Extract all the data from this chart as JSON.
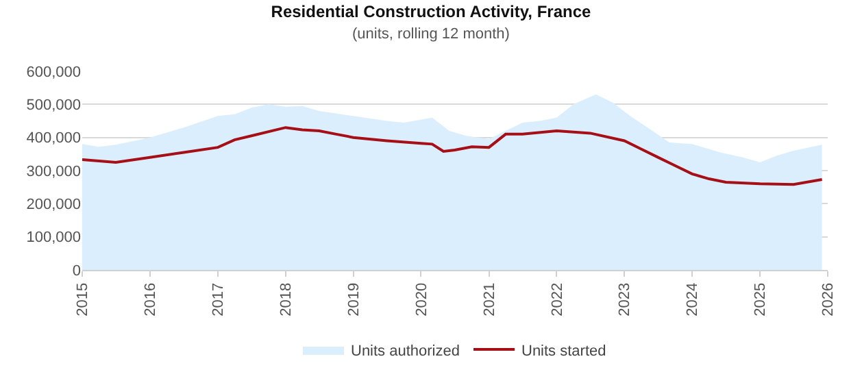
{
  "chart_data": {
    "type": "area",
    "title": "Residential Construction Activity, France",
    "subtitle": "(units, rolling 12 month)",
    "xlim": [
      "2015-01-01",
      "2026-01-01"
    ],
    "xticks": [
      {
        "value": "2015-01-01",
        "label": "2015"
      },
      {
        "value": "2016-01-01",
        "label": "2016"
      },
      {
        "value": "2017-01-01",
        "label": "2017"
      },
      {
        "value": "2018-01-01",
        "label": "2018"
      },
      {
        "value": "2019-01-01",
        "label": "2019"
      },
      {
        "value": "2020-01-01",
        "label": "2020"
      },
      {
        "value": "2021-01-01",
        "label": "2021"
      },
      {
        "value": "2022-01-01",
        "label": "2022"
      },
      {
        "value": "2023-01-01",
        "label": "2023"
      },
      {
        "value": "2024-01-01",
        "label": "2024"
      },
      {
        "value": "2025-01-01",
        "label": "2025"
      },
      {
        "value": "2026-01-01",
        "label": "2026"
      }
    ],
    "ylim": [
      0,
      600000
    ],
    "yticks": [
      {
        "value": 0,
        "label": "0"
      },
      {
        "value": 100000,
        "label": "100,000"
      },
      {
        "value": 200000,
        "label": "200,000"
      },
      {
        "value": 300000,
        "label": "300,000"
      },
      {
        "value": 400000,
        "label": "400,000"
      },
      {
        "value": 500000,
        "label": "500,000"
      },
      {
        "value": 600000,
        "label": "600,000"
      }
    ],
    "grid": "y",
    "legend": "bottom",
    "series": [
      {
        "name": "Units authorized",
        "color": "#dbeefd",
        "x": [
          "2015-01",
          "2015-04",
          "2015-07",
          "2016-01",
          "2016-07",
          "2017-01",
          "2017-04",
          "2017-07",
          "2017-10",
          "2018-01",
          "2018-04",
          "2018-07",
          "2019-01",
          "2019-07",
          "2019-10",
          "2020-03",
          "2020-06",
          "2020-09",
          "2021-01",
          "2021-04",
          "2021-07",
          "2021-10",
          "2022-01",
          "2022-04",
          "2022-08",
          "2022-11",
          "2023-02",
          "2023-06",
          "2023-09",
          "2024-01",
          "2024-06",
          "2024-10",
          "2025-01",
          "2025-04",
          "2025-07",
          "2025-12"
        ],
        "values": [
          380000,
          372000,
          378000,
          400000,
          430000,
          465000,
          470000,
          490000,
          500000,
          493000,
          495000,
          480000,
          465000,
          450000,
          445000,
          460000,
          420000,
          405000,
          395000,
          420000,
          445000,
          450000,
          460000,
          500000,
          530000,
          505000,
          465000,
          420000,
          385000,
          380000,
          355000,
          340000,
          325000,
          345000,
          360000,
          378000
        ]
      },
      {
        "name": "Units started",
        "type": "line",
        "color": "#a50f15",
        "x": [
          "2015-01",
          "2015-07",
          "2016-01",
          "2016-07",
          "2017-01",
          "2017-04",
          "2017-07",
          "2018-01",
          "2018-04",
          "2018-07",
          "2018-10",
          "2019-01",
          "2019-07",
          "2020-01",
          "2020-03",
          "2020-05",
          "2020-07",
          "2020-10",
          "2021-01",
          "2021-04",
          "2021-07",
          "2022-01",
          "2022-07",
          "2023-01",
          "2023-04",
          "2023-07",
          "2023-10",
          "2024-01",
          "2024-04",
          "2024-07",
          "2025-01",
          "2025-07",
          "2025-12"
        ],
        "values": [
          333000,
          325000,
          340000,
          355000,
          370000,
          393000,
          405000,
          430000,
          423000,
          420000,
          410000,
          400000,
          390000,
          382000,
          380000,
          358000,
          362000,
          372000,
          370000,
          410000,
          410000,
          420000,
          413000,
          390000,
          365000,
          340000,
          315000,
          290000,
          275000,
          265000,
          260000,
          258000,
          273000
        ]
      }
    ]
  }
}
